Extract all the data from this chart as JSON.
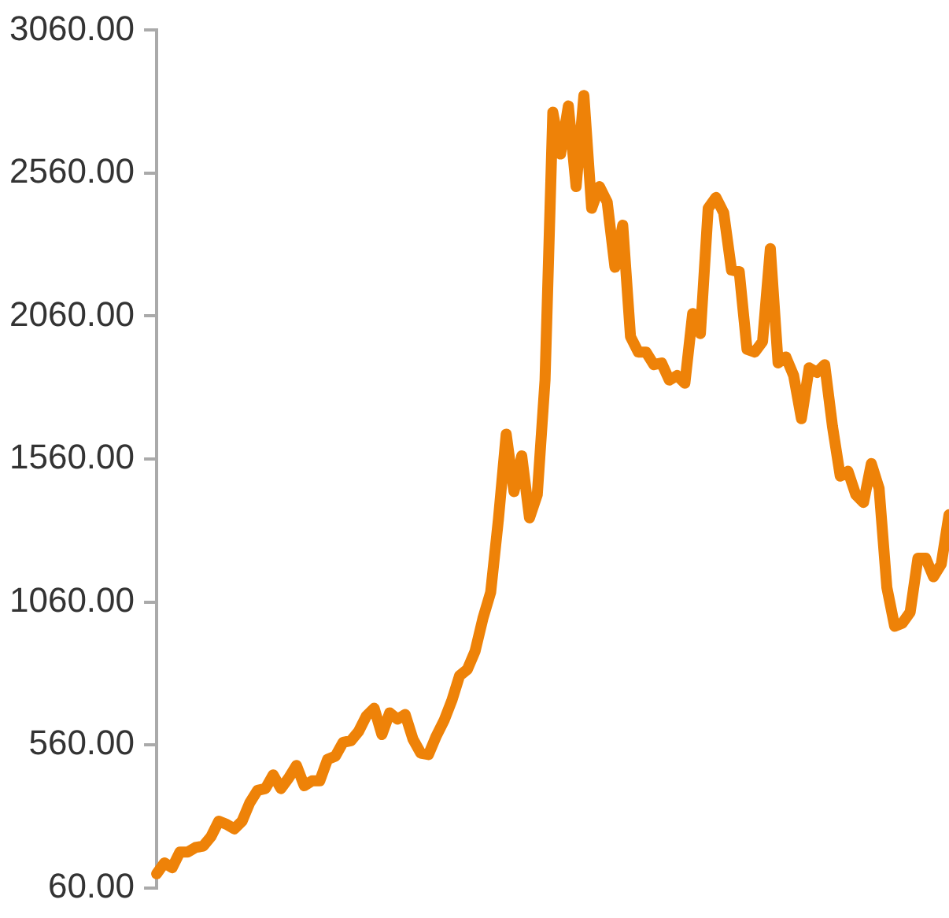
{
  "chart_data": {
    "type": "line",
    "categories": [
      null,
      null,
      null,
      null,
      null,
      null,
      null,
      null,
      null,
      null,
      null,
      null,
      null,
      null,
      null,
      null,
      null,
      null,
      null,
      null,
      null,
      null,
      null,
      null,
      null,
      null,
      null,
      null,
      null,
      null,
      null,
      null,
      null,
      null,
      null,
      null,
      null,
      null,
      null,
      null,
      null,
      null,
      null,
      null,
      null,
      null,
      null,
      null,
      null,
      null,
      null,
      null,
      null,
      null,
      null,
      null,
      null,
      null,
      null,
      null,
      null,
      null,
      null,
      null,
      null,
      null,
      null,
      null,
      null,
      null,
      null,
      null,
      null,
      null,
      null,
      null,
      null,
      null,
      null,
      null,
      null,
      null,
      null,
      null,
      null,
      null,
      null,
      null,
      null,
      null,
      null,
      null,
      null,
      null,
      null,
      null,
      null,
      null,
      null,
      null,
      null,
      null,
      null
    ],
    "series": [
      {
        "color": "#ee8208",
        "values": [
          109,
          147,
          130,
          185,
          185,
          201,
          206,
          239,
          293,
          282,
          266,
          293,
          358,
          401,
          407,
          455,
          407,
          444,
          488,
          417,
          434,
          434,
          509,
          520,
          569,
          574,
          607,
          661,
          688,
          596,
          672,
          650,
          666,
          580,
          531,
          526,
          591,
          645,
          715,
          802,
          824,
          888,
          1002,
          1094,
          1349,
          1647,
          1446,
          1571,
          1354,
          1435,
          1836,
          2773,
          2627,
          2795,
          2513,
          2832,
          2437,
          2513,
          2459,
          2231,
          2378,
          1988,
          1934,
          1934,
          1890,
          1896,
          1836,
          1852,
          1825,
          2069,
          1999,
          2437,
          2475,
          2421,
          2221,
          2215,
          1944,
          1934,
          1971,
          2296,
          1896,
          1917,
          1852,
          1701,
          1879,
          1863,
          1890,
          1674,
          1500,
          1517,
          1435,
          1408,
          1544,
          1457,
          1111,
          975,
          986,
          1024,
          1213,
          1213,
          1148,
          1192,
          1365
        ]
      }
    ],
    "ylim": [
      60,
      3060
    ],
    "yticks": [
      {
        "value": 60,
        "label": "60.00"
      },
      {
        "value": 560,
        "label": "560.00"
      },
      {
        "value": 1060,
        "label": "1060.00"
      },
      {
        "value": 1560,
        "label": "1560.00"
      },
      {
        "value": 2060,
        "label": "2060.00"
      },
      {
        "value": 2560,
        "label": "2560.00"
      },
      {
        "value": 3060,
        "label": "3060.00"
      }
    ],
    "tick_labels": "y",
    "marker": "none",
    "line_style": "solid"
  }
}
